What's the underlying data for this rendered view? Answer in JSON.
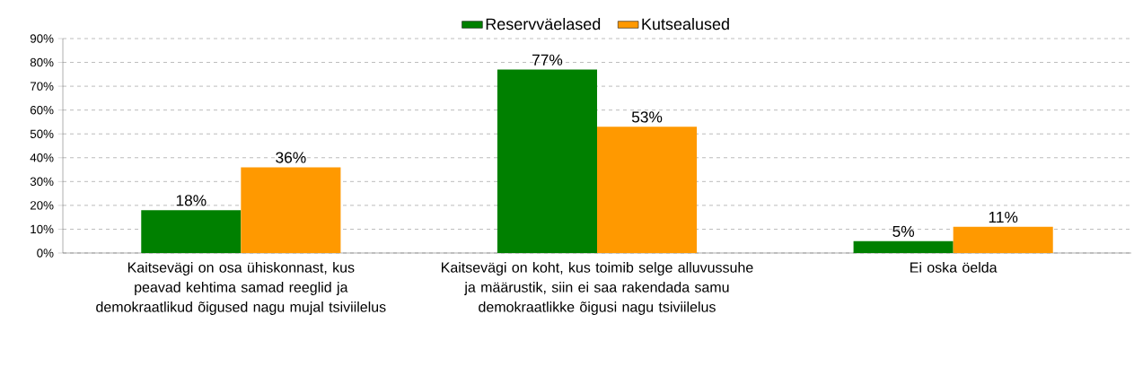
{
  "chart_data": {
    "type": "bar",
    "categories": [
      "Kaitsevägi on osa ühiskonnast, kus peavad kehtima samad reeglid ja demokraatlikud õigused nagu mujal tsiviilelus",
      "Kaitsevägi on koht, kus toimib selge alluvussuhe ja määrustik, siin ei saa rakendada samu demokraatlikke õigusi nagu tsiviilelus",
      "Ei oska öelda"
    ],
    "series": [
      {
        "name": "Reservväelased",
        "color": "#008000",
        "values": [
          18,
          77,
          5
        ],
        "value_labels": [
          "18%",
          "77%",
          "5%"
        ]
      },
      {
        "name": "Kutsealused",
        "color": "#ff9900",
        "values": [
          36,
          53,
          11
        ],
        "value_labels": [
          "36%",
          "53%",
          "11%"
        ]
      }
    ],
    "ylim": [
      0,
      90
    ],
    "yticks": [
      {
        "value": 0,
        "label": "0%"
      },
      {
        "value": 10,
        "label": "10%"
      },
      {
        "value": 20,
        "label": "20%"
      },
      {
        "value": 30,
        "label": "30%"
      },
      {
        "value": 40,
        "label": "40%"
      },
      {
        "value": 50,
        "label": "50%"
      },
      {
        "value": 60,
        "label": "60%"
      },
      {
        "value": 70,
        "label": "70%"
      },
      {
        "value": 80,
        "label": "80%"
      },
      {
        "value": 90,
        "label": "90%"
      }
    ],
    "grid": "y",
    "legend": "top"
  }
}
